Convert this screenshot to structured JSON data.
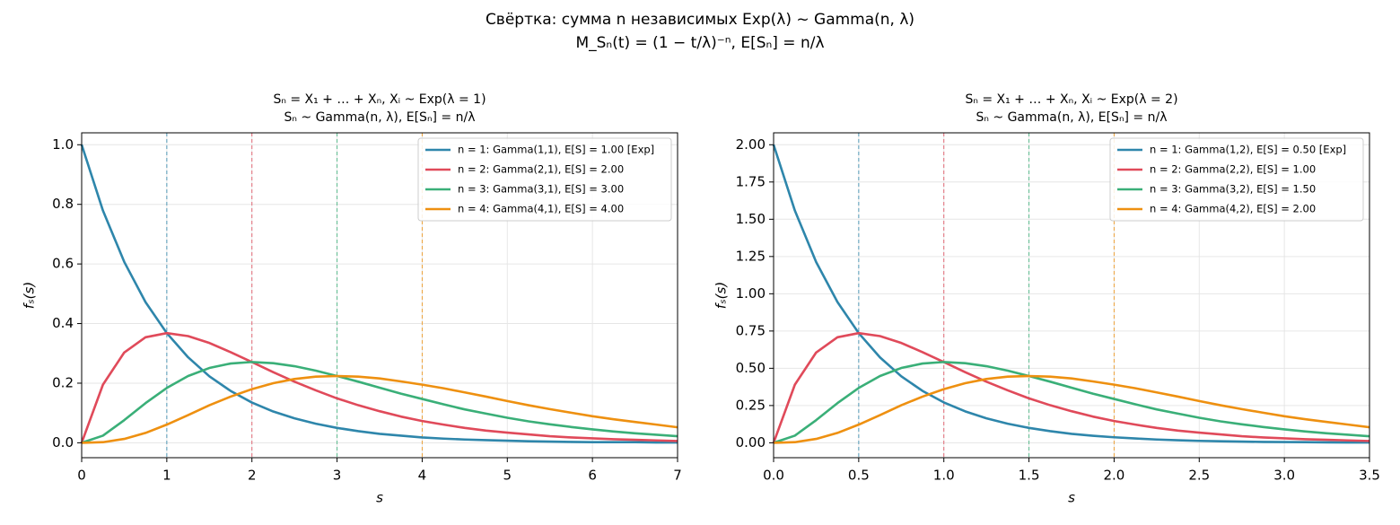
{
  "title": "Свёртка: сумма n независимых Exp(λ) ~ Gamma(n, λ)",
  "subtitle": "M_Sₙ(t) = (1 − t/λ)⁻ⁿ,  E[Sₙ] = n/λ",
  "chart_data": [
    {
      "type": "line",
      "title": "Sₙ = X₁ + … + Xₙ,  Xᵢ ~ Exp(λ = 1)",
      "subtitle": "Sₙ ~ Gamma(n, λ),  E[Sₙ] = n/λ",
      "x_label": "s",
      "y_label": "fₛ(s)",
      "x": [
        0,
        0.25,
        0.5,
        0.75,
        1,
        1.25,
        1.5,
        1.75,
        2,
        2.25,
        2.5,
        2.75,
        3,
        3.25,
        3.5,
        3.75,
        4,
        4.25,
        4.5,
        4.75,
        5,
        5.25,
        5.5,
        5.75,
        6,
        6.25,
        6.5,
        6.75,
        7
      ],
      "series": [
        {
          "name": "n = 1: Gamma(1,1), E[S] = 1.00 [Exp]",
          "color": "#2e86ab",
          "mean": 1,
          "values": [
            1,
            0.779,
            0.607,
            0.472,
            0.368,
            0.287,
            0.223,
            0.174,
            0.135,
            0.105,
            0.082,
            0.064,
            0.05,
            0.039,
            0.03,
            0.024,
            0.018,
            0.014,
            0.011,
            0.009,
            0.007,
            0.005,
            0.004,
            0.003,
            0.002,
            0.002,
            0.002,
            0.001,
            0.001
          ]
        },
        {
          "name": "n = 2: Gamma(2,1), E[S] = 2.00",
          "color": "#e04a5a",
          "mean": 2,
          "values": [
            0,
            0.195,
            0.303,
            0.354,
            0.368,
            0.358,
            0.335,
            0.304,
            0.271,
            0.237,
            0.205,
            0.176,
            0.149,
            0.126,
            0.106,
            0.088,
            0.073,
            0.061,
            0.05,
            0.041,
            0.034,
            0.028,
            0.022,
            0.018,
            0.015,
            0.012,
            0.01,
            0.008,
            0.006
          ]
        },
        {
          "name": "n = 3: Gamma(3,1), E[S] = 3.00",
          "color": "#3aaf78",
          "mean": 3,
          "values": [
            0,
            0.024,
            0.076,
            0.133,
            0.184,
            0.224,
            0.251,
            0.266,
            0.271,
            0.267,
            0.257,
            0.242,
            0.224,
            0.205,
            0.185,
            0.165,
            0.147,
            0.129,
            0.112,
            0.098,
            0.084,
            0.072,
            0.062,
            0.053,
            0.045,
            0.038,
            0.032,
            0.027,
            0.022
          ]
        },
        {
          "name": "n = 4: Gamma(4,1), E[S] = 4.00",
          "color": "#ee9010",
          "mean": 4,
          "values": [
            0,
            0.002,
            0.013,
            0.033,
            0.061,
            0.093,
            0.126,
            0.155,
            0.18,
            0.2,
            0.214,
            0.222,
            0.224,
            0.222,
            0.216,
            0.206,
            0.195,
            0.183,
            0.169,
            0.155,
            0.14,
            0.126,
            0.113,
            0.101,
            0.089,
            0.079,
            0.07,
            0.061,
            0.052
          ]
        }
      ],
      "xlim": [
        0,
        7
      ],
      "xticks": [
        0,
        1,
        2,
        3,
        4,
        5,
        6,
        7
      ],
      "ylim": [
        -0.05,
        1.04
      ],
      "yticks": [
        {
          "value": 0,
          "label": "0.0"
        },
        0.2,
        0.4,
        0.6,
        0.8,
        {
          "value": 1,
          "label": "1.0"
        }
      ],
      "grid": true,
      "legend": "upper right"
    },
    {
      "type": "line",
      "title": "Sₙ = X₁ + … + Xₙ,  Xᵢ ~ Exp(λ = 2)",
      "subtitle": "Sₙ ~ Gamma(n, λ),  E[Sₙ] = n/λ",
      "x_label": "s",
      "y_label": "fₛ(s)",
      "x": [
        0,
        0.125,
        0.25,
        0.375,
        0.5,
        0.625,
        0.75,
        0.875,
        1,
        1.125,
        1.25,
        1.375,
        1.5,
        1.625,
        1.75,
        1.875,
        2,
        2.125,
        2.25,
        2.375,
        2.5,
        2.625,
        2.75,
        2.875,
        3,
        3.125,
        3.25,
        3.375,
        3.5
      ],
      "series": [
        {
          "name": "n = 1: Gamma(1,2), E[S] = 0.50 [Exp]",
          "color": "#2e86ab",
          "mean": 0.5,
          "values": [
            2,
            1.558,
            1.213,
            0.945,
            0.736,
            0.573,
            0.446,
            0.348,
            0.271,
            0.211,
            0.164,
            0.128,
            0.1,
            0.078,
            0.06,
            0.047,
            0.037,
            0.029,
            0.022,
            0.017,
            0.013,
            0.01,
            0.008,
            0.006,
            0.005,
            0.004,
            0.003,
            0.002,
            0.002
          ]
        },
        {
          "name": "n = 2: Gamma(2,2), E[S] = 1.00",
          "color": "#e04a5a",
          "mean": 1,
          "values": [
            0,
            0.39,
            0.606,
            0.708,
            0.736,
            0.716,
            0.67,
            0.608,
            0.542,
            0.474,
            0.41,
            0.352,
            0.298,
            0.252,
            0.212,
            0.176,
            0.146,
            0.122,
            0.1,
            0.082,
            0.068,
            0.056,
            0.044,
            0.036,
            0.03,
            0.024,
            0.02,
            0.016,
            0.012
          ]
        },
        {
          "name": "n = 3: Gamma(3,2), E[S] = 1.50",
          "color": "#3aaf78",
          "mean": 1.5,
          "values": [
            0,
            0.048,
            0.152,
            0.266,
            0.368,
            0.448,
            0.502,
            0.532,
            0.542,
            0.534,
            0.514,
            0.484,
            0.448,
            0.41,
            0.37,
            0.33,
            0.294,
            0.258,
            0.224,
            0.196,
            0.168,
            0.144,
            0.124,
            0.106,
            0.09,
            0.076,
            0.064,
            0.054,
            0.044
          ]
        },
        {
          "name": "n = 4: Gamma(4,2), E[S] = 2.00",
          "color": "#ee9010",
          "mean": 2,
          "values": [
            0,
            0.004,
            0.026,
            0.066,
            0.122,
            0.186,
            0.252,
            0.31,
            0.36,
            0.4,
            0.428,
            0.444,
            0.448,
            0.444,
            0.432,
            0.412,
            0.39,
            0.366,
            0.338,
            0.31,
            0.28,
            0.252,
            0.226,
            0.202,
            0.178,
            0.158,
            0.14,
            0.122,
            0.104
          ]
        }
      ],
      "xlim": [
        0,
        3.5
      ],
      "xticks": [
        {
          "value": 0,
          "label": "0.0"
        },
        0.5,
        {
          "value": 1,
          "label": "1.0"
        },
        1.5,
        {
          "value": 2,
          "label": "2.0"
        },
        2.5,
        {
          "value": 3,
          "label": "3.0"
        },
        3.5
      ],
      "ylim": [
        -0.1,
        2.08
      ],
      "yticks": [
        {
          "value": 0,
          "label": "0.00"
        },
        0.25,
        {
          "value": 0.5,
          "label": "0.50"
        },
        0.75,
        {
          "value": 1,
          "label": "1.00"
        },
        1.25,
        {
          "value": 1.5,
          "label": "1.50"
        },
        1.75,
        {
          "value": 2,
          "label": "2.00"
        }
      ],
      "grid": true,
      "legend": "upper right"
    }
  ]
}
